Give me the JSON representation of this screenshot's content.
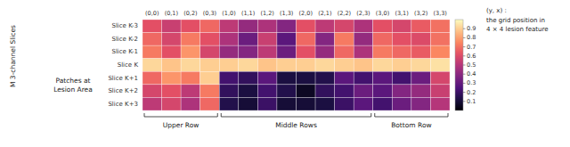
{
  "chart_data": {
    "type": "heatmap",
    "title": "(y, x) :\nthe grid position in\n4 × 4 lesion feature",
    "ylabel": "M 3-channel Slices",
    "categories": [
      "(0,0)",
      "(0,1)",
      "(0,2)",
      "(0,3)",
      "(1,0)",
      "(1,1)",
      "(1,2)",
      "(1,3)",
      "(2,0)",
      "(2,1)",
      "(2,2)",
      "(2,3)",
      "(3,0)",
      "(3,1)",
      "(3,2)",
      "(3,3)"
    ],
    "row_labels": [
      "Slice K-3",
      "Slice K-2",
      "Slice K-1",
      "Slice K",
      "Slice K+1",
      "Slice K+2",
      "Slice K+3"
    ],
    "cells": [
      [
        0.62,
        0.55,
        0.62,
        0.68,
        0.52,
        0.42,
        0.48,
        0.38,
        0.62,
        0.52,
        0.58,
        0.48,
        0.62,
        0.58,
        0.65,
        0.7
      ],
      [
        0.68,
        0.58,
        0.72,
        0.62,
        0.48,
        0.32,
        0.55,
        0.28,
        0.68,
        0.38,
        0.72,
        0.42,
        0.68,
        0.62,
        0.6,
        0.7
      ],
      [
        0.72,
        0.62,
        0.78,
        0.58,
        0.42,
        0.38,
        0.52,
        0.32,
        0.62,
        0.42,
        0.68,
        0.48,
        0.72,
        0.68,
        0.65,
        0.75
      ],
      [
        0.92,
        0.88,
        0.92,
        0.9,
        0.9,
        0.92,
        0.88,
        0.9,
        0.9,
        0.92,
        0.9,
        0.88,
        0.92,
        0.9,
        0.92,
        0.94
      ],
      [
        0.68,
        0.78,
        0.72,
        0.9,
        0.22,
        0.18,
        0.28,
        0.12,
        0.12,
        0.14,
        0.28,
        0.22,
        0.28,
        0.22,
        0.32,
        0.58
      ],
      [
        0.58,
        0.62,
        0.52,
        0.72,
        0.18,
        0.12,
        0.22,
        0.14,
        0.06,
        0.18,
        0.22,
        0.32,
        0.28,
        0.38,
        0.42,
        0.55
      ],
      [
        0.52,
        0.58,
        0.48,
        0.68,
        0.14,
        0.1,
        0.2,
        0.1,
        0.1,
        0.12,
        0.2,
        0.28,
        0.22,
        0.32,
        0.38,
        0.5
      ]
    ],
    "color_range": [
      0.0,
      1.0
    ],
    "color_ticks": [
      0.1,
      0.2,
      0.3,
      0.4,
      0.5,
      0.6,
      0.7,
      0.8,
      0.9
    ],
    "groups": [
      {
        "label": "Upper Row",
        "start": "(0,0)",
        "end": "(0,3)"
      },
      {
        "label": "Middle Rows",
        "start": "(1,0)",
        "end": "(2,3)"
      },
      {
        "label": "Bottom Row",
        "start": "(3,0)",
        "end": "(3,3)"
      }
    ],
    "annotations": [
      {
        "text": "Patches at\nLesion Area"
      }
    ]
  }
}
